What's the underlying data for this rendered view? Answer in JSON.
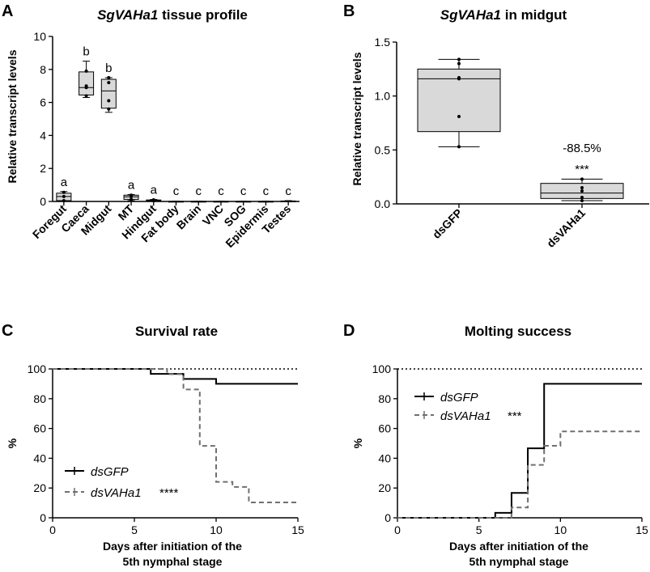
{
  "panels": {
    "A": {
      "label": "A",
      "title_italic": "SgVAHa1",
      "title_rest": " tissue profile"
    },
    "B": {
      "label": "B",
      "title_italic": "SgVAHa1",
      "title_rest": " in midgut"
    },
    "C": {
      "label": "C"
    },
    "D": {
      "label": "D"
    }
  },
  "colors": {
    "box_fill": "#d9d9d9",
    "line": "#000000",
    "dashed": "#707070"
  },
  "chart_data": [
    {
      "type": "box",
      "id": "A",
      "title": "SgVAHa1 tissue profile",
      "ylabel": "Relative transcript levels",
      "ylim": [
        0,
        10
      ],
      "yticks": [
        "0",
        "2",
        "4",
        "6",
        "8",
        "10"
      ],
      "categories": [
        "Foregut",
        "Caeca",
        "Midgut",
        "MT",
        "Hindgut",
        "Fat body",
        "Brain",
        "VNC",
        "SOG",
        "Epidermis",
        "Testes"
      ],
      "letters": [
        "a",
        "b",
        "b",
        "a",
        "a",
        "c",
        "c",
        "c",
        "c",
        "c",
        "c"
      ],
      "boxes": [
        {
          "min": 0.02,
          "q1": 0.05,
          "median": 0.3,
          "q3": 0.5,
          "max": 0.6,
          "points": [
            0.05,
            0.3,
            0.55
          ]
        },
        {
          "min": 6.3,
          "q1": 6.45,
          "median": 6.9,
          "q3": 7.85,
          "max": 8.5,
          "points": [
            6.4,
            6.9,
            7.0,
            7.9
          ]
        },
        {
          "min": 5.4,
          "q1": 5.65,
          "median": 6.7,
          "q3": 7.4,
          "max": 7.5,
          "points": [
            5.6,
            6.1,
            7.2,
            7.5
          ]
        },
        {
          "min": 0.05,
          "q1": 0.12,
          "median": 0.28,
          "q3": 0.38,
          "max": 0.42,
          "points": [
            0.12,
            0.3,
            0.38
          ]
        },
        {
          "min": 0.0,
          "q1": 0.02,
          "median": 0.05,
          "q3": 0.09,
          "max": 0.12,
          "points": [
            0.05,
            0.1
          ]
        },
        {
          "min": 0,
          "q1": 0,
          "median": 0,
          "q3": 0.01,
          "max": 0.02,
          "points": []
        },
        {
          "min": 0,
          "q1": 0,
          "median": 0,
          "q3": 0.01,
          "max": 0.02,
          "points": []
        },
        {
          "min": 0,
          "q1": 0,
          "median": 0,
          "q3": 0.01,
          "max": 0.02,
          "points": []
        },
        {
          "min": 0,
          "q1": 0,
          "median": 0,
          "q3": 0.01,
          "max": 0.02,
          "points": []
        },
        {
          "min": 0,
          "q1": 0,
          "median": 0,
          "q3": 0.01,
          "max": 0.02,
          "points": []
        },
        {
          "min": 0,
          "q1": 0,
          "median": 0.01,
          "q3": 0.03,
          "max": 0.05,
          "points": []
        }
      ]
    },
    {
      "type": "box",
      "id": "B",
      "title": "SgVAHa1 in midgut",
      "ylabel": "Relative transcript levels",
      "ylim": [
        0,
        1.5
      ],
      "yticks": [
        "0.0",
        "0.5",
        "1.0",
        "1.5"
      ],
      "categories": [
        "dsGFP",
        "dsVAHa1"
      ],
      "boxes": [
        {
          "min": 0.53,
          "q1": 0.67,
          "median": 1.16,
          "q3": 1.25,
          "max": 1.34,
          "points": [
            0.53,
            0.81,
            1.16,
            1.17,
            1.3,
            1.34
          ]
        },
        {
          "min": 0.03,
          "q1": 0.05,
          "median": 0.1,
          "q3": 0.19,
          "max": 0.23,
          "points": [
            0.03,
            0.06,
            0.12,
            0.15,
            0.23
          ]
        }
      ],
      "annotation_percent": "-88.5%",
      "annotation_sig": "***"
    },
    {
      "type": "line",
      "id": "C",
      "title": "Survival rate",
      "xlabel_line1": "Days after initiation of the",
      "xlabel_line2": "5th nymphal stage",
      "ylabel": "%",
      "xlim": [
        0,
        15
      ],
      "ylim": [
        0,
        100
      ],
      "xticks": [
        "0",
        "5",
        "10",
        "15"
      ],
      "yticks": [
        "0",
        "20",
        "40",
        "60",
        "80",
        "100"
      ],
      "reference_line": 100,
      "series": [
        {
          "name": "dsGFP",
          "style": "solid",
          "x": [
            0,
            6,
            8,
            10,
            15
          ],
          "y": [
            100,
            96.7,
            93.3,
            90,
            90
          ]
        },
        {
          "name": "dsVAHa1",
          "style": "dashed",
          "x": [
            0,
            7,
            8,
            9,
            10,
            11,
            12,
            15
          ],
          "y": [
            100,
            96.5,
            86.2,
            48.3,
            24.1,
            20.7,
            10.3,
            10.3
          ]
        }
      ],
      "significance": "****"
    },
    {
      "type": "line",
      "id": "D",
      "title": "Molting success",
      "xlabel_line1": "Days after initiation of the",
      "xlabel_line2": "5th nymphal stage",
      "ylabel": "%",
      "xlim": [
        0,
        15
      ],
      "ylim": [
        0,
        100
      ],
      "xticks": [
        "0",
        "5",
        "10",
        "15"
      ],
      "yticks": [
        "0",
        "20",
        "40",
        "60",
        "80",
        "100"
      ],
      "reference_line": 100,
      "series": [
        {
          "name": "dsGFP",
          "style": "solid",
          "x": [
            0,
            6,
            7,
            8,
            9,
            15
          ],
          "y": [
            0,
            3.3,
            16.7,
            46.7,
            90,
            90
          ]
        },
        {
          "name": "dsVAHa1",
          "style": "dashed",
          "x": [
            0,
            7,
            8,
            9,
            10,
            15
          ],
          "y": [
            0,
            6.9,
            35.5,
            48.4,
            58,
            58
          ]
        }
      ],
      "significance": "***"
    }
  ]
}
